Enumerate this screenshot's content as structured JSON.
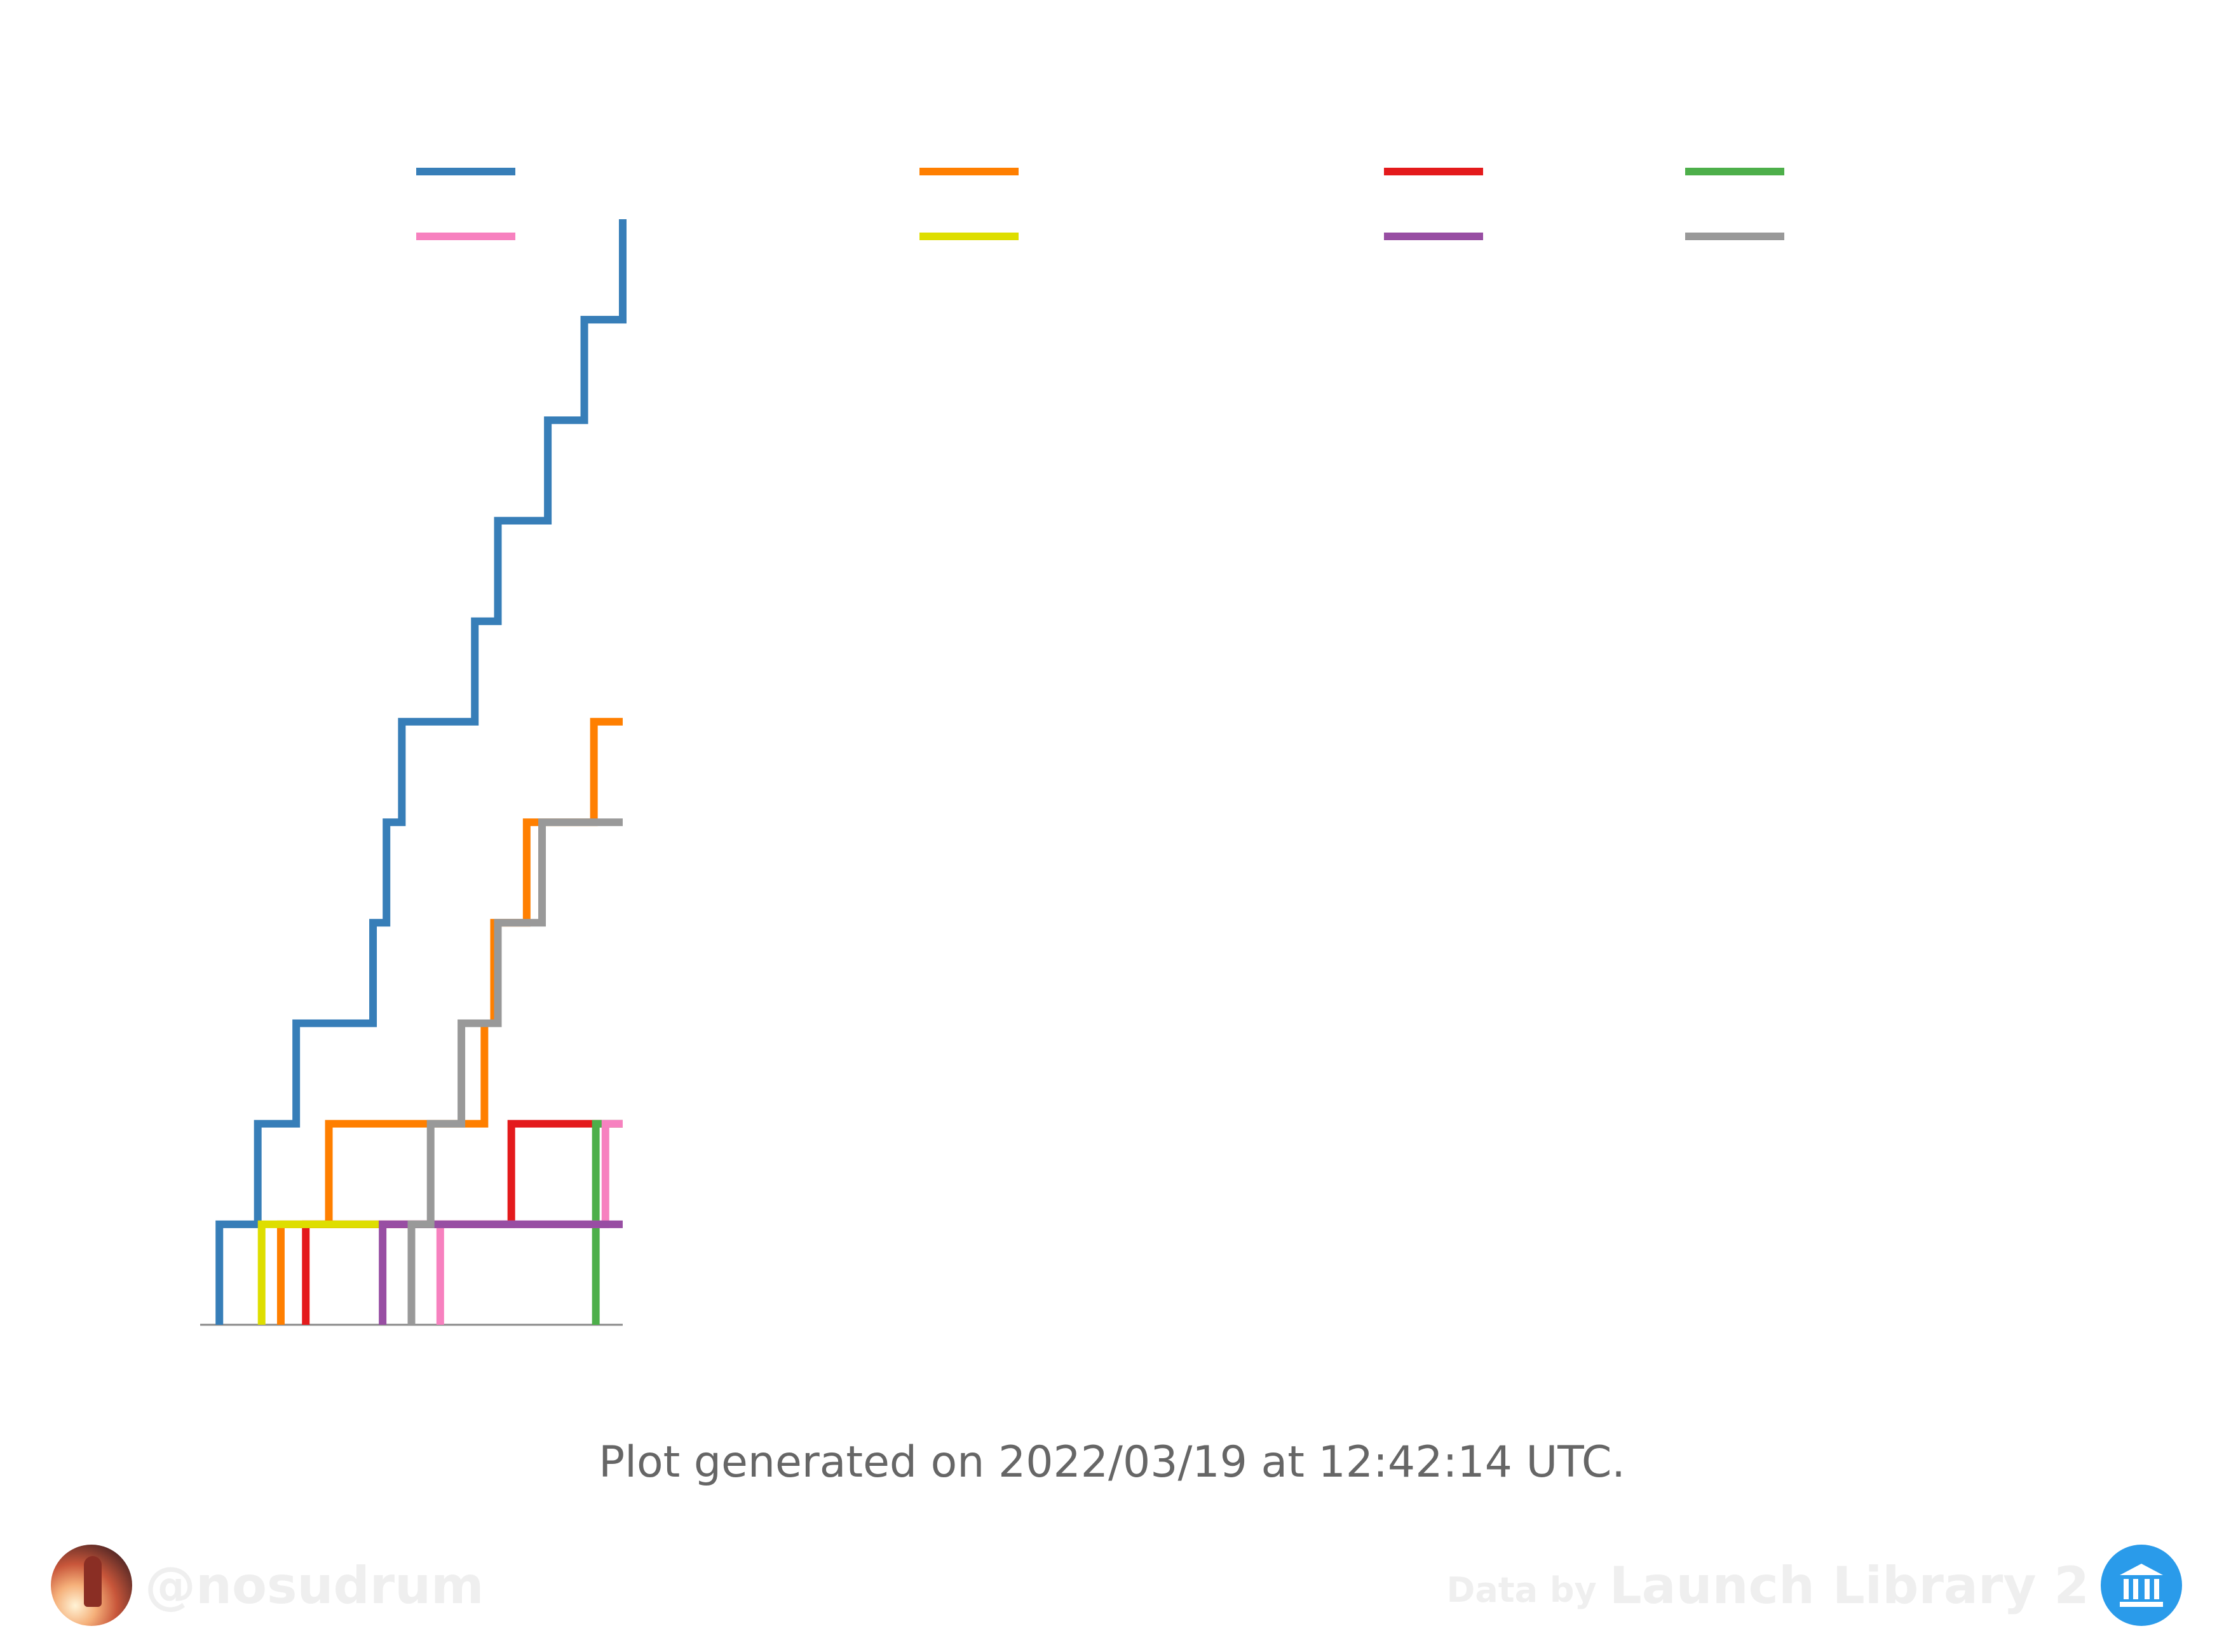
{
  "chart_data": {
    "type": "line",
    "step": true,
    "title": "",
    "xlabel": "",
    "ylabel": "",
    "xlim": [
      0,
      22
    ],
    "ylim": [
      0,
      11
    ],
    "grid": false,
    "legend_position": "top",
    "series": [
      {
        "color": "#377eb8",
        "x": [
          1,
          3,
          5,
          9,
          9.7,
          10.5,
          14.3,
          15.5,
          18.1,
          20,
          22
        ],
        "y": [
          1,
          2,
          3,
          4,
          5,
          6,
          7,
          8,
          9,
          10,
          11
        ]
      },
      {
        "color": "#ff7f00",
        "x": [
          4.2,
          6.7,
          14.8,
          15.3,
          17,
          20.5,
          22
        ],
        "y": [
          1,
          2,
          3,
          4,
          5,
          6,
          6
        ]
      },
      {
        "color": "#e41a1c",
        "x": [
          5.5,
          16.2,
          22
        ],
        "y": [
          1,
          2,
          2
        ]
      },
      {
        "color": "#4daf4a",
        "x": [
          20.6,
          22
        ],
        "y": [
          2,
          2
        ]
      },
      {
        "color": "#f781bf",
        "x": [
          12.5,
          21.1,
          22
        ],
        "y": [
          1,
          2,
          2
        ]
      },
      {
        "color": "#dede00",
        "x": [
          3.2,
          9.3
        ],
        "y": [
          1,
          1
        ]
      },
      {
        "color": "#984ea3",
        "x": [
          9.5,
          22
        ],
        "y": [
          1,
          1
        ]
      },
      {
        "color": "#999999",
        "x": [
          11,
          12,
          13.6,
          15.5,
          17.8,
          22
        ],
        "y": [
          1,
          2,
          3,
          4,
          5,
          5
        ]
      }
    ]
  },
  "footer": {
    "note": "Plot generated on 2022/03/19 at 12:42:14 UTC.",
    "author_handle": "@nosudrum",
    "credit_prefix": "Data by",
    "credit_source": "Launch Library 2"
  }
}
